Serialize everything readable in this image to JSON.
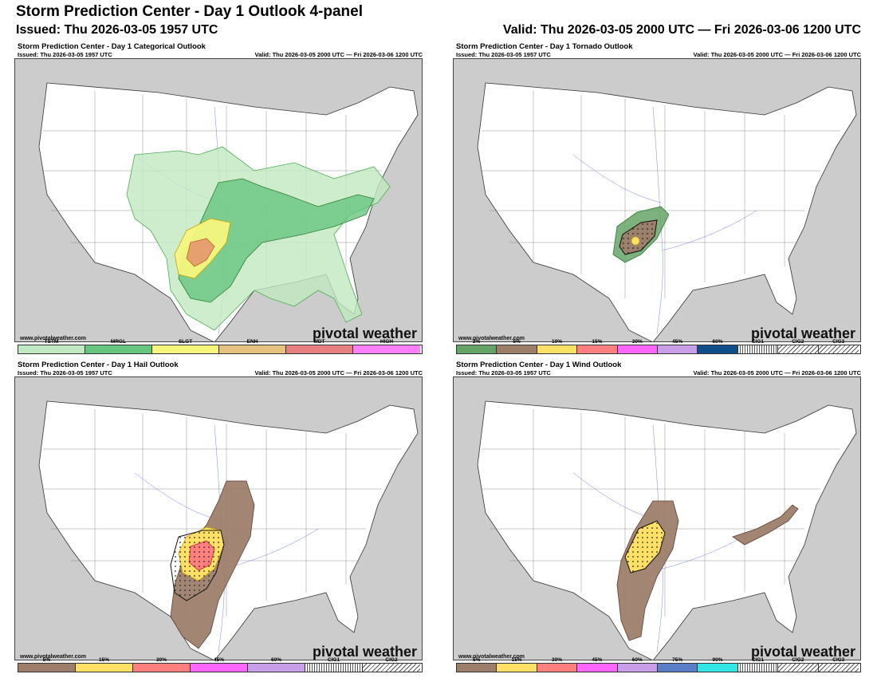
{
  "header": {
    "title": "Storm Prediction Center - Day 1 Outlook 4-panel",
    "issued": "Issued: Thu 2026-03-05 1957 UTC",
    "valid": "Valid: Thu 2026-03-05 2000 UTC — Fri 2026-03-06 1200 UTC"
  },
  "panel_common": {
    "issued": "Issued: Thu 2026-03-05 1957 UTC",
    "valid": "Valid: Thu 2026-03-05 2000 UTC — Fri 2026-03-06 1200 UTC",
    "url": "www.pivotalweather.com",
    "watermark": "pivotal weather"
  },
  "panels": {
    "categorical": {
      "title": "Storm Prediction Center - Day 1 Categorical Outlook",
      "legend": [
        {
          "label": "TSTM",
          "color": "#c1e9c1"
        },
        {
          "label": "MRGL",
          "color": "#66c57f"
        },
        {
          "label": "SLGT",
          "color": "#f6f67f"
        },
        {
          "label": "ENH",
          "color": "#e6c27f"
        },
        {
          "label": "MDT",
          "color": "#e67f7f"
        },
        {
          "label": "HIGH",
          "color": "#ff7fff"
        }
      ]
    },
    "tornado": {
      "title": "Storm Prediction Center - Day 1 Tornado Outlook",
      "legend": [
        {
          "label": "2%",
          "color": "#66a366"
        },
        {
          "label": "5%",
          "color": "#9d7e6a"
        },
        {
          "label": "10%",
          "color": "#ffe066"
        },
        {
          "label": "15%",
          "color": "#ff7f7f"
        },
        {
          "label": "30%",
          "color": "#ff66ff"
        },
        {
          "label": "45%",
          "color": "#c89ee8"
        },
        {
          "label": "60%",
          "color": "#104e8b"
        },
        {
          "label": "CIG1",
          "color": "hatch1"
        },
        {
          "label": "CIG2",
          "color": "hatch2"
        },
        {
          "label": "CIG3",
          "color": "hatch3"
        }
      ]
    },
    "hail": {
      "title": "Storm Prediction Center - Day 1 Hail Outlook",
      "legend": [
        {
          "label": "5%",
          "color": "#9d7e6a"
        },
        {
          "label": "15%",
          "color": "#ffe066"
        },
        {
          "label": "30%",
          "color": "#ff7f7f"
        },
        {
          "label": "45%",
          "color": "#ff66ff"
        },
        {
          "label": "60%",
          "color": "#c89ee8"
        },
        {
          "label": "CIG1",
          "color": "hatch1"
        },
        {
          "label": "CIG2",
          "color": "hatch2"
        }
      ]
    },
    "wind": {
      "title": "Storm Prediction Center - Day 1 Wind Outlook",
      "legend": [
        {
          "label": "5%",
          "color": "#9d7e6a"
        },
        {
          "label": "15%",
          "color": "#ffe066"
        },
        {
          "label": "30%",
          "color": "#ff7f7f"
        },
        {
          "label": "45%",
          "color": "#ff66ff"
        },
        {
          "label": "60%",
          "color": "#c89ee8"
        },
        {
          "label": "75%",
          "color": "#5b7ec8"
        },
        {
          "label": "90%",
          "color": "#33e6e6"
        },
        {
          "label": "CIG1",
          "color": "hatch1"
        },
        {
          "label": "CIG2",
          "color": "hatch2"
        },
        {
          "label": "CIG3",
          "color": "hatch3"
        }
      ]
    }
  }
}
